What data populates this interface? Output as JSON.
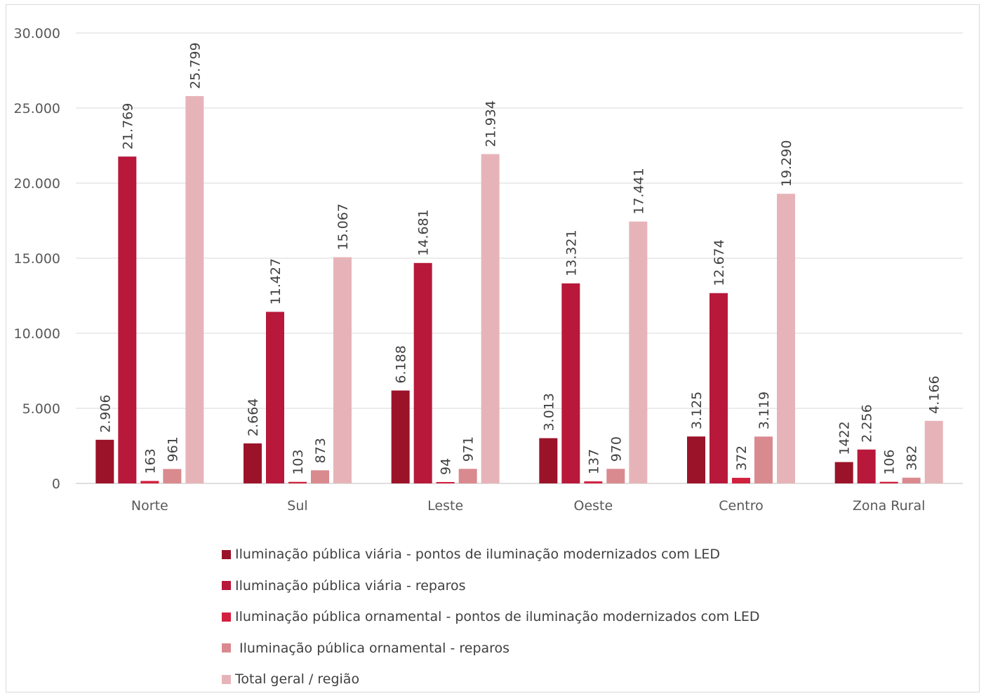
{
  "chart_data": {
    "type": "bar",
    "title": "",
    "xlabel": "",
    "ylabel": "",
    "ylim": [
      0,
      30000
    ],
    "yticks": [
      {
        "value": 0,
        "label": "0"
      },
      {
        "value": 5000,
        "label": "5.000"
      },
      {
        "value": 10000,
        "label": "10.000"
      },
      {
        "value": 15000,
        "label": "15.000"
      },
      {
        "value": 20000,
        "label": "20.000"
      },
      {
        "value": 25000,
        "label": "25.000"
      },
      {
        "value": 30000,
        "label": "30.000"
      }
    ],
    "grid": true,
    "legend_position": "bottom",
    "categories": [
      "Norte",
      "Sul",
      "Leste",
      "Oeste",
      "Centro",
      "Zona Rural"
    ],
    "series": [
      {
        "name": "Iluminação pública viária - pontos de iluminação modernizados com LED",
        "color": "#9b1329",
        "values": [
          2906,
          2664,
          6188,
          3013,
          3125,
          1422
        ],
        "labels": [
          "2.906",
          "2.664",
          "6.188",
          "3.013",
          "3.125",
          "1422"
        ]
      },
      {
        "name": "Iluminação pública viária - reparos",
        "color": "#b8183a",
        "values": [
          21769,
          11427,
          14681,
          13321,
          12674,
          2256
        ],
        "labels": [
          "21.769",
          "11.427",
          "14.681",
          "13.321",
          "12.674",
          "2.256"
        ]
      },
      {
        "name": "Iluminação pública ornamental - pontos de iluminação modernizados com LED",
        "color": "#d2203f",
        "values": [
          163,
          103,
          94,
          137,
          372,
          106
        ],
        "labels": [
          "163",
          "103",
          "94",
          "137",
          "372",
          "106"
        ]
      },
      {
        "name": " Iluminação pública ornamental - reparos",
        "color": "#d98a8f",
        "values": [
          961,
          873,
          971,
          970,
          3119,
          382
        ],
        "labels": [
          "961",
          "873",
          "971",
          "970",
          "3.119",
          "382"
        ]
      },
      {
        "name": "Total geral / região",
        "color": "#e6b4b8",
        "values": [
          25799,
          15067,
          21934,
          17441,
          19290,
          4166
        ],
        "labels": [
          "25.799",
          "15.067",
          "21.934",
          "17.441",
          "19.290",
          "4.166"
        ]
      }
    ]
  }
}
